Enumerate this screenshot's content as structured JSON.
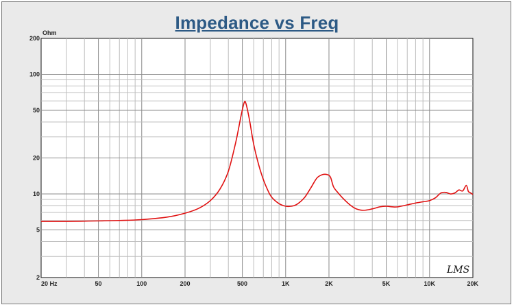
{
  "chart_data": {
    "type": "line",
    "title": "Impedance vs Freq",
    "xlabel": "",
    "ylabel": "Ohm",
    "x_scale": "log",
    "y_scale": "log",
    "xlim": [
      20,
      20000
    ],
    "ylim": [
      2,
      200
    ],
    "grid": true,
    "x_ticks": [
      {
        "value": 20,
        "label": "20  Hz"
      },
      {
        "value": 50,
        "label": "50"
      },
      {
        "value": 100,
        "label": "100"
      },
      {
        "value": 200,
        "label": "200"
      },
      {
        "value": 500,
        "label": "500"
      },
      {
        "value": 1000,
        "label": "1K"
      },
      {
        "value": 2000,
        "label": "2K"
      },
      {
        "value": 5000,
        "label": "5K"
      },
      {
        "value": 10000,
        "label": "10K"
      },
      {
        "value": 20000,
        "label": "20K"
      }
    ],
    "y_ticks": [
      {
        "value": 2,
        "label": "2"
      },
      {
        "value": 5,
        "label": "5"
      },
      {
        "value": 10,
        "label": "10"
      },
      {
        "value": 20,
        "label": "20"
      },
      {
        "value": 50,
        "label": "50"
      },
      {
        "value": 100,
        "label": "100"
      },
      {
        "value": 200,
        "label": "200"
      }
    ],
    "watermark": "LMS",
    "series": [
      {
        "color": "#e01010",
        "points": [
          [
            20,
            5.9
          ],
          [
            30,
            5.9
          ],
          [
            50,
            5.95
          ],
          [
            70,
            6.0
          ],
          [
            100,
            6.1
          ],
          [
            150,
            6.4
          ],
          [
            200,
            6.9
          ],
          [
            250,
            7.6
          ],
          [
            300,
            8.8
          ],
          [
            350,
            11.0
          ],
          [
            400,
            15.5
          ],
          [
            450,
            27
          ],
          [
            490,
            45
          ],
          [
            515,
            58
          ],
          [
            530,
            57
          ],
          [
            560,
            42
          ],
          [
            600,
            26
          ],
          [
            650,
            17.5
          ],
          [
            700,
            13.2
          ],
          [
            750,
            10.8
          ],
          [
            800,
            9.4
          ],
          [
            900,
            8.3
          ],
          [
            1000,
            7.9
          ],
          [
            1100,
            7.9
          ],
          [
            1200,
            8.2
          ],
          [
            1350,
            9.3
          ],
          [
            1500,
            11.3
          ],
          [
            1650,
            13.6
          ],
          [
            1800,
            14.5
          ],
          [
            1950,
            14.5
          ],
          [
            2050,
            13.8
          ],
          [
            2150,
            11.5
          ],
          [
            2300,
            10.3
          ],
          [
            2500,
            9.2
          ],
          [
            2800,
            8.1
          ],
          [
            3100,
            7.5
          ],
          [
            3500,
            7.3
          ],
          [
            4000,
            7.5
          ],
          [
            4500,
            7.8
          ],
          [
            5000,
            7.9
          ],
          [
            5500,
            7.8
          ],
          [
            6000,
            7.8
          ],
          [
            7000,
            8.1
          ],
          [
            8000,
            8.4
          ],
          [
            9000,
            8.6
          ],
          [
            10000,
            8.8
          ],
          [
            11000,
            9.3
          ],
          [
            12000,
            10.2
          ],
          [
            13000,
            10.3
          ],
          [
            14000,
            10.0
          ],
          [
            15000,
            10.2
          ],
          [
            16000,
            10.8
          ],
          [
            17000,
            10.6
          ],
          [
            18000,
            11.8
          ],
          [
            18600,
            10.5
          ],
          [
            19300,
            10.2
          ],
          [
            20000,
            9.9
          ]
        ]
      }
    ]
  }
}
